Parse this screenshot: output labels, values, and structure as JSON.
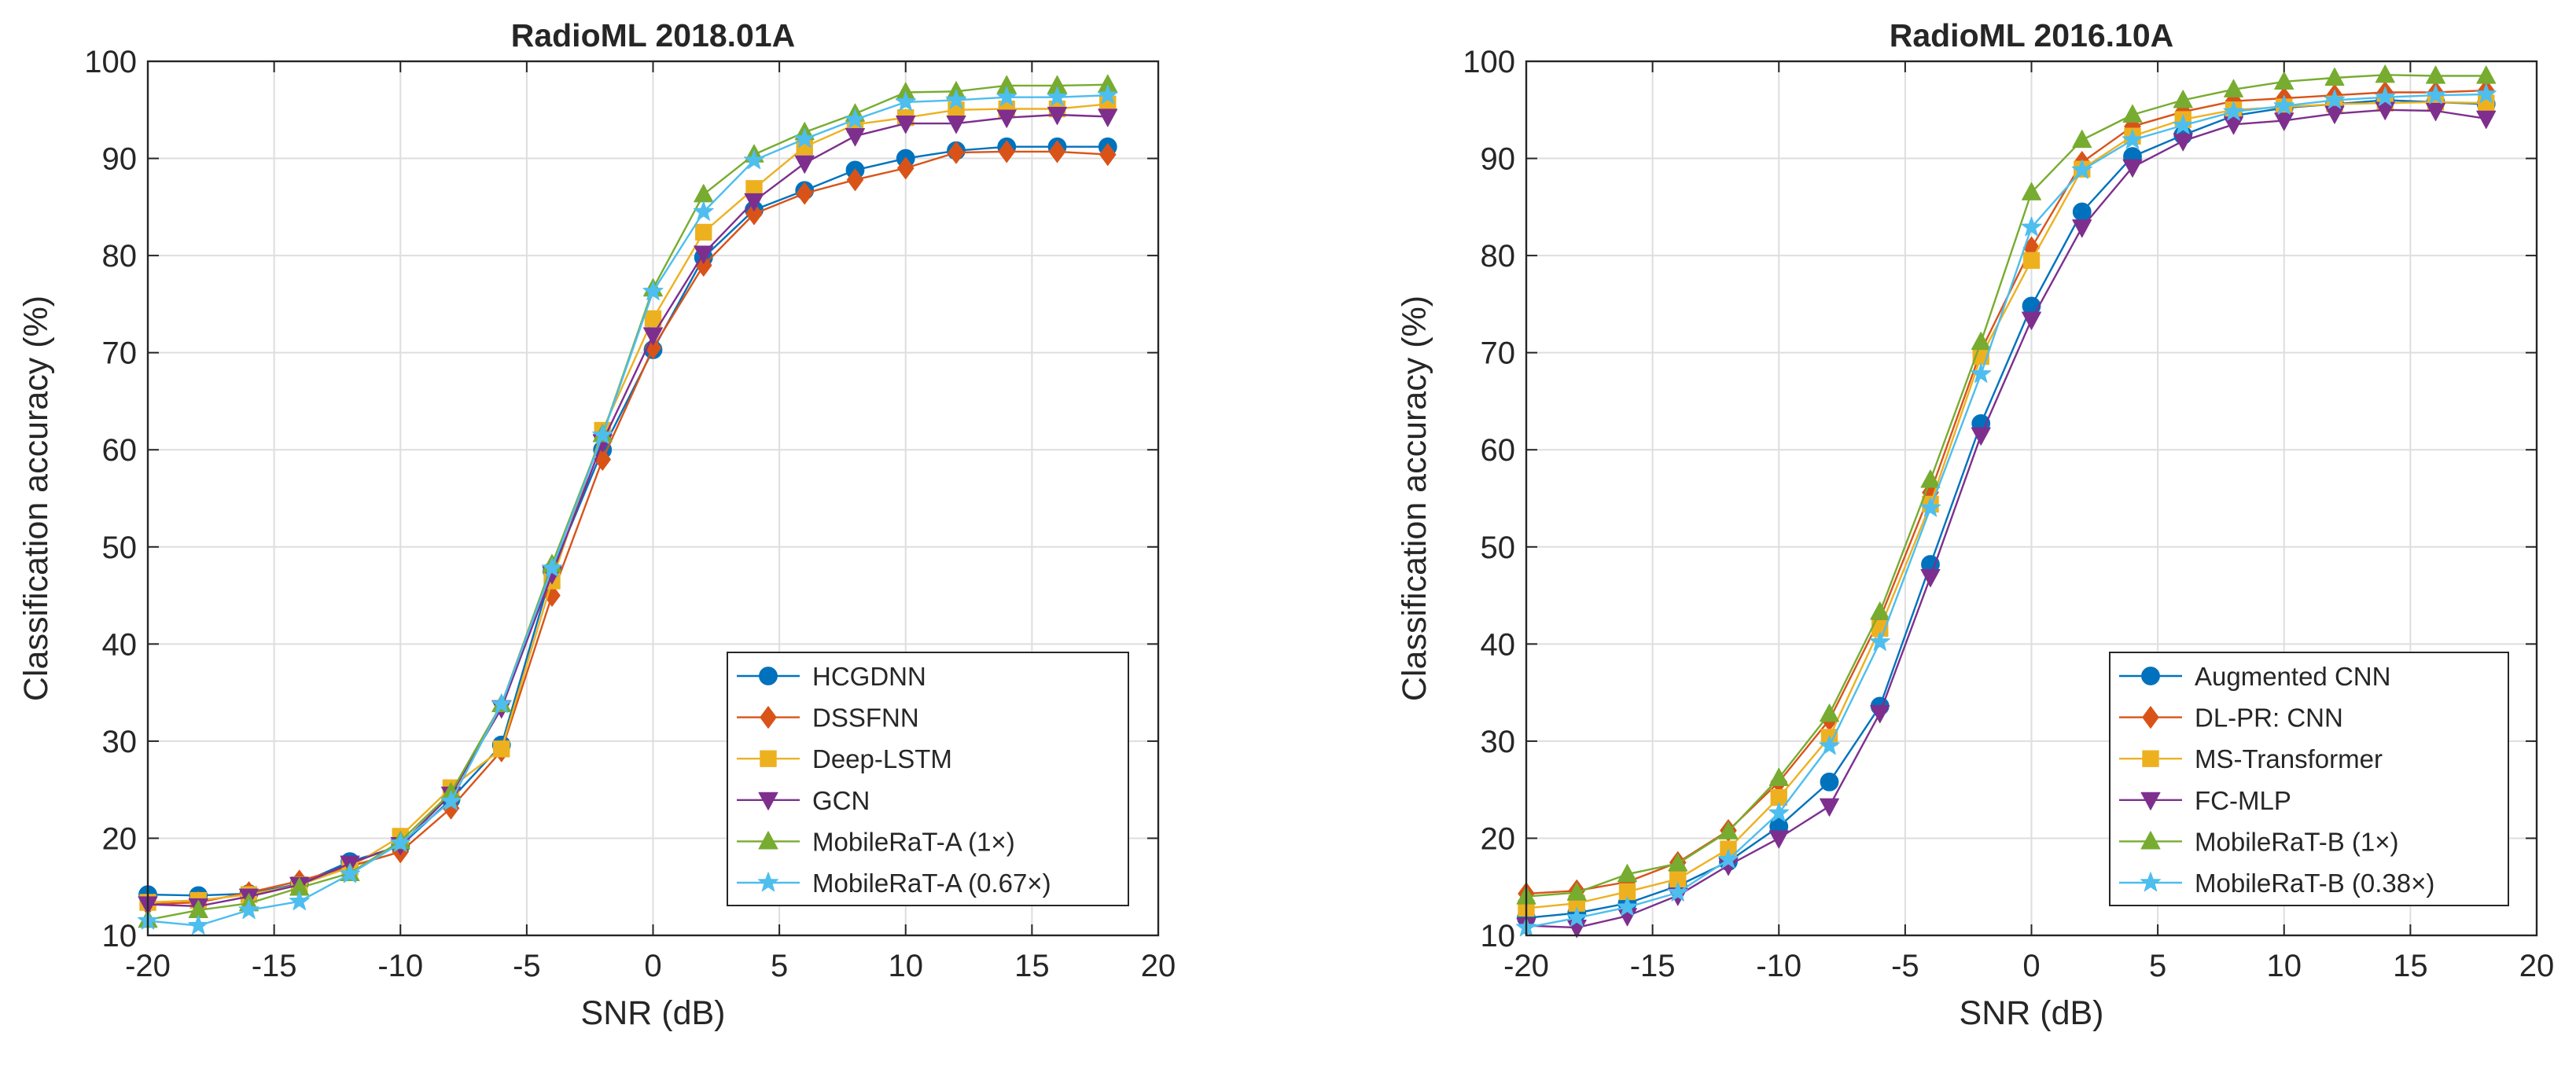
{
  "chart_data": [
    {
      "type": "line",
      "title": "RadioML 2018.01A",
      "xlabel": "SNR (dB)",
      "ylabel": "Classification accuracy (%)",
      "xlim": [
        -20,
        20
      ],
      "ylim": [
        10,
        100
      ],
      "xticks": [
        -20,
        -15,
        -10,
        -5,
        0,
        5,
        10,
        15,
        20
      ],
      "xtick_labels": [
        "-20",
        "-15",
        "-10",
        "-5",
        "0",
        "5",
        "10",
        "15",
        "20"
      ],
      "yticks": [
        10,
        20,
        30,
        40,
        50,
        60,
        70,
        80,
        90,
        100
      ],
      "ytick_labels": [
        "10",
        "20",
        "30",
        "40",
        "50",
        "60",
        "70",
        "80",
        "90",
        "100"
      ],
      "grid": true,
      "legend_position": "bottom-right",
      "x": [
        -20,
        -18,
        -16,
        -14,
        -12,
        -10,
        -8,
        -6,
        -4,
        -2,
        0,
        2,
        4,
        6,
        8,
        10,
        12,
        14,
        16,
        18
      ],
      "series": [
        {
          "name": "HCGDNN",
          "color": "#0072BD",
          "marker": "circle",
          "values": [
            14.2,
            14.1,
            14.3,
            15.3,
            17.6,
            19.2,
            24.0,
            29.6,
            47.5,
            60.0,
            70.3,
            79.8,
            84.7,
            86.7,
            88.8,
            90.0,
            90.8,
            91.2,
            91.2,
            91.2
          ]
        },
        {
          "name": "DSSFNN",
          "color": "#D95319",
          "marker": "diamond",
          "values": [
            13.2,
            13.4,
            14.4,
            15.6,
            17.1,
            18.6,
            23.1,
            29.0,
            45.0,
            59.0,
            70.5,
            79.0,
            84.3,
            86.4,
            87.8,
            89.0,
            90.6,
            90.7,
            90.7,
            90.4
          ]
        },
        {
          "name": "Deep-LSTM",
          "color": "#EDB120",
          "marker": "square",
          "values": [
            13.4,
            13.6,
            14.2,
            15.2,
            17.0,
            20.2,
            25.2,
            29.2,
            46.5,
            62.0,
            73.5,
            82.4,
            86.9,
            91.2,
            93.5,
            94.2,
            95.0,
            95.1,
            95.1,
            95.6
          ]
        },
        {
          "name": "GCN",
          "color": "#7E2F8E",
          "marker": "triangle-down",
          "values": [
            13.2,
            13.0,
            14.0,
            15.2,
            17.4,
            19.3,
            24.5,
            33.4,
            47.2,
            60.8,
            71.8,
            80.2,
            85.6,
            89.5,
            92.3,
            93.6,
            93.6,
            94.2,
            94.5,
            94.3
          ]
        },
        {
          "name": "MobileRaT-A (1×)",
          "color": "#77AC30",
          "marker": "triangle-up",
          "values": [
            11.6,
            12.6,
            13.3,
            14.9,
            16.4,
            19.7,
            24.7,
            33.8,
            48.2,
            61.6,
            76.6,
            86.3,
            90.4,
            92.7,
            94.6,
            96.8,
            96.9,
            97.5,
            97.5,
            97.6
          ]
        },
        {
          "name": "MobileRaT-A (0.67×)",
          "color": "#4DBEEE",
          "marker": "star",
          "values": [
            11.5,
            11.0,
            12.6,
            13.5,
            16.3,
            19.5,
            23.8,
            33.8,
            47.8,
            61.5,
            76.3,
            84.5,
            89.8,
            92.0,
            94.0,
            95.8,
            96.0,
            96.3,
            96.3,
            96.5
          ]
        }
      ]
    },
    {
      "type": "line",
      "title": "RadioML 2016.10A",
      "xlabel": "SNR (dB)",
      "ylabel": "Classification accuracy (%)",
      "xlim": [
        -20,
        20
      ],
      "ylim": [
        10,
        100
      ],
      "xticks": [
        -20,
        -15,
        -10,
        -5,
        0,
        5,
        10,
        15,
        20
      ],
      "xtick_labels": [
        "-20",
        "-15",
        "-10",
        "-5",
        "0",
        "5",
        "10",
        "15",
        "20"
      ],
      "yticks": [
        10,
        20,
        30,
        40,
        50,
        60,
        70,
        80,
        90,
        100
      ],
      "ytick_labels": [
        "10",
        "20",
        "30",
        "40",
        "50",
        "60",
        "70",
        "80",
        "90",
        "100"
      ],
      "grid": true,
      "legend_position": "bottom-right",
      "x": [
        -20,
        -18,
        -16,
        -14,
        -12,
        -10,
        -8,
        -6,
        -4,
        -2,
        0,
        2,
        4,
        6,
        8,
        10,
        12,
        14,
        16,
        18
      ],
      "series": [
        {
          "name": "Augmented CNN",
          "color": "#0072BD",
          "marker": "circle",
          "values": [
            11.8,
            12.3,
            13.3,
            15.1,
            17.6,
            21.2,
            25.8,
            33.6,
            48.2,
            62.7,
            74.8,
            84.5,
            90.2,
            92.4,
            94.4,
            95.2,
            95.6,
            96.0,
            95.8,
            95.6
          ]
        },
        {
          "name": "DL-PR: CNN",
          "color": "#D95319",
          "marker": "diamond",
          "values": [
            14.3,
            14.6,
            15.5,
            17.5,
            20.8,
            25.8,
            32.2,
            42.6,
            55.6,
            70.2,
            80.8,
            89.6,
            93.3,
            94.8,
            95.9,
            96.2,
            96.5,
            96.8,
            96.8,
            97.0
          ]
        },
        {
          "name": "MS-Transformer",
          "color": "#EDB120",
          "marker": "square",
          "values": [
            12.8,
            13.3,
            14.5,
            15.8,
            18.9,
            24.2,
            30.4,
            41.6,
            54.4,
            69.6,
            79.5,
            88.9,
            92.3,
            94.0,
            95.0,
            95.3,
            95.6,
            95.7,
            95.8,
            95.7
          ]
        },
        {
          "name": "FC-MLP",
          "color": "#7E2F8E",
          "marker": "triangle-down",
          "values": [
            11.0,
            10.8,
            12.0,
            14.1,
            17.2,
            20.0,
            23.3,
            32.9,
            46.9,
            61.5,
            73.4,
            82.9,
            89.1,
            91.8,
            93.5,
            93.9,
            94.6,
            95.0,
            94.9,
            94.1
          ]
        },
        {
          "name": "MobileRaT-B (1×)",
          "color": "#77AC30",
          "marker": "triangle-up",
          "values": [
            14.0,
            14.4,
            16.3,
            17.4,
            20.7,
            26.2,
            32.8,
            43.3,
            56.9,
            71.1,
            86.5,
            91.9,
            94.5,
            96.0,
            97.1,
            97.9,
            98.3,
            98.6,
            98.5,
            98.5
          ]
        },
        {
          "name": "MobileRaT-B (0.38×)",
          "color": "#4DBEEE",
          "marker": "star",
          "values": [
            10.8,
            11.8,
            12.9,
            14.4,
            17.8,
            22.6,
            29.5,
            40.2,
            54.0,
            67.8,
            82.9,
            88.8,
            91.9,
            93.4,
            94.8,
            95.4,
            96.0,
            96.3,
            96.5,
            96.6
          ]
        }
      ]
    }
  ]
}
